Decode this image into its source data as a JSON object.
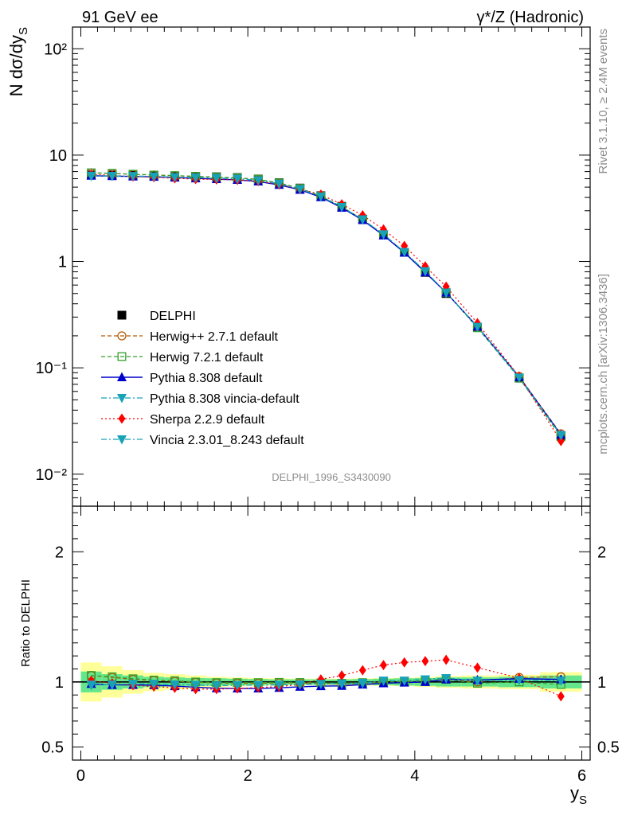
{
  "header": {
    "left": "91 GeV ee",
    "right": "γ*/Z (Hadronic)"
  },
  "side_labels": {
    "version": "Rivet 3.1.10, ≥ 2.4M events",
    "source": "mcplots.cern.ch [arXiv:1306.3436]"
  },
  "analysis_label": "DELPHI_1996_S3430090",
  "chart_data": [
    {
      "type": "scatter",
      "panel": "main",
      "ylabel": "N dσ/dy_S",
      "yscale": "log",
      "ylim": [
        0.005,
        160
      ],
      "xlim": [
        -0.1,
        6.1
      ],
      "y_ticks": [
        "10⁻²",
        "10⁻¹",
        "1",
        "10",
        "10²"
      ],
      "legend_position": "middle-left",
      "x": [
        0.125,
        0.375,
        0.625,
        0.875,
        1.125,
        1.375,
        1.625,
        1.875,
        2.125,
        2.375,
        2.625,
        2.875,
        3.125,
        3.375,
        3.625,
        3.875,
        4.125,
        4.375,
        4.75,
        5.25,
        5.75
      ],
      "series": [
        {
          "name": "DELPHI",
          "color": "#000000",
          "marker": "square-filled",
          "line": "none",
          "values": [
            6.5,
            6.5,
            6.45,
            6.4,
            6.35,
            6.3,
            6.25,
            6.15,
            5.95,
            5.5,
            4.9,
            4.15,
            3.3,
            2.5,
            1.78,
            1.22,
            0.79,
            0.5,
            0.24,
            0.08,
            0.023
          ]
        },
        {
          "name": "Herwig++ 2.7.1 default",
          "color": "#b35900",
          "marker": "circle-open",
          "line": "dashed",
          "values": [
            6.8,
            6.72,
            6.6,
            6.5,
            6.4,
            6.3,
            6.2,
            6.1,
            5.9,
            5.45,
            4.85,
            4.1,
            3.25,
            2.48,
            1.78,
            1.22,
            0.8,
            0.51,
            0.24,
            0.083,
            0.024
          ]
        },
        {
          "name": "Herwig 7.2.1 default",
          "color": "#33a02c",
          "marker": "square-open",
          "line": "dashed",
          "values": [
            6.82,
            6.75,
            6.62,
            6.5,
            6.42,
            6.32,
            6.22,
            6.12,
            5.92,
            5.48,
            4.88,
            4.12,
            3.27,
            2.49,
            1.78,
            1.22,
            0.8,
            0.51,
            0.238,
            0.08,
            0.0225
          ]
        },
        {
          "name": "Pythia 8.308 default",
          "color": "#0000cc",
          "marker": "triangle-up",
          "line": "solid",
          "values": [
            6.4,
            6.35,
            6.3,
            6.25,
            6.15,
            6.05,
            5.95,
            5.85,
            5.65,
            5.25,
            4.72,
            4.02,
            3.2,
            2.45,
            1.76,
            1.21,
            0.79,
            0.51,
            0.244,
            0.082,
            0.0235
          ]
        },
        {
          "name": "Pythia 8.308 vincia-default",
          "color": "#17a2b8",
          "marker": "triangle-down",
          "line": "dashdot",
          "values": [
            6.35,
            6.37,
            6.35,
            6.3,
            6.22,
            6.15,
            6.08,
            6.0,
            5.8,
            5.38,
            4.8,
            4.08,
            3.25,
            2.48,
            1.8,
            1.23,
            0.81,
            0.51,
            0.243,
            0.081,
            0.0232
          ]
        },
        {
          "name": "Sherpa 2.2.9 default",
          "color": "#ff0000",
          "marker": "diamond",
          "line": "dotted",
          "values": [
            6.6,
            6.45,
            6.3,
            6.2,
            6.05,
            5.95,
            5.9,
            5.85,
            5.7,
            5.3,
            4.8,
            4.25,
            3.45,
            2.72,
            2.0,
            1.4,
            0.9,
            0.58,
            0.263,
            0.083,
            0.0205
          ]
        },
        {
          "name": "Vincia 2.3.01_8.243 default",
          "color": "#17a2b8",
          "marker": "triangle-down",
          "line": "dashdot",
          "values": [
            6.4,
            6.38,
            6.36,
            6.3,
            6.22,
            6.15,
            6.08,
            6.0,
            5.8,
            5.38,
            4.8,
            4.08,
            3.26,
            2.49,
            1.8,
            1.23,
            0.81,
            0.51,
            0.243,
            0.081,
            0.0232
          ]
        }
      ]
    },
    {
      "type": "scatter",
      "panel": "ratio",
      "xlabel": "y_S",
      "ylabel": "Ratio to DELPHI",
      "ylim": [
        0.4,
        2.35
      ],
      "xlim": [
        -0.1,
        6.1
      ],
      "x_ticks": [
        "0",
        "2",
        "4",
        "6"
      ],
      "y_ticks": [
        "0.5",
        "1",
        "2"
      ],
      "reference": 1,
      "x": [
        0.125,
        0.375,
        0.625,
        0.875,
        1.125,
        1.375,
        1.625,
        1.875,
        2.125,
        2.375,
        2.625,
        2.875,
        3.125,
        3.375,
        3.625,
        3.875,
        4.125,
        4.375,
        4.75,
        5.25,
        5.75
      ],
      "band_inner": [
        0.08,
        0.06,
        0.05,
        0.04,
        0.035,
        0.03,
        0.028,
        0.025,
        0.022,
        0.02,
        0.02,
        0.02,
        0.02,
        0.022,
        0.025,
        0.028,
        0.03,
        0.035,
        0.035,
        0.04,
        0.05
      ],
      "band_outer": [
        0.15,
        0.12,
        0.09,
        0.07,
        0.06,
        0.05,
        0.04,
        0.035,
        0.03,
        0.028,
        0.025,
        0.025,
        0.025,
        0.027,
        0.03,
        0.033,
        0.038,
        0.045,
        0.05,
        0.055,
        0.075
      ],
      "series": [
        {
          "name": "Herwig++ 2.7.1 default",
          "values": [
            1.05,
            1.035,
            1.02,
            1.012,
            1.005,
            0.998,
            0.992,
            0.99,
            0.99,
            0.993,
            0.993,
            0.99,
            0.985,
            0.99,
            1.0,
            1.0,
            1.01,
            1.02,
            1.0,
            1.035,
            1.04
          ]
        },
        {
          "name": "Herwig 7.2.1 default",
          "values": [
            1.05,
            1.04,
            1.025,
            1.015,
            1.01,
            1.0,
            0.995,
            0.995,
            0.995,
            0.997,
            0.996,
            0.993,
            0.99,
            0.995,
            1.0,
            1.0,
            1.01,
            1.02,
            0.99,
            1.0,
            0.98
          ]
        },
        {
          "name": "Pythia 8.308 default",
          "values": [
            0.985,
            0.977,
            0.977,
            0.975,
            0.968,
            0.96,
            0.952,
            0.95,
            0.95,
            0.955,
            0.963,
            0.968,
            0.97,
            0.98,
            0.99,
            0.995,
            1.0,
            1.02,
            1.015,
            1.025,
            1.02
          ]
        },
        {
          "name": "Pythia 8.308 vincia-default",
          "values": [
            0.975,
            0.98,
            0.985,
            0.985,
            0.98,
            0.976,
            0.972,
            0.975,
            0.975,
            0.978,
            0.98,
            0.985,
            0.985,
            0.99,
            1.01,
            1.01,
            1.02,
            1.03,
            1.01,
            1.015,
            1.01
          ]
        },
        {
          "name": "Sherpa 2.2.9 default",
          "values": [
            1.01,
            0.99,
            0.975,
            0.965,
            0.955,
            0.945,
            0.945,
            0.95,
            0.957,
            0.964,
            0.98,
            1.02,
            1.05,
            1.09,
            1.13,
            1.15,
            1.16,
            1.17,
            1.11,
            1.03,
            0.89
          ]
        },
        {
          "name": "Vincia 2.3.01_8.243 default",
          "values": [
            0.98,
            0.98,
            0.986,
            0.985,
            0.98,
            0.976,
            0.973,
            0.975,
            0.975,
            0.978,
            0.98,
            0.985,
            0.988,
            0.993,
            1.01,
            1.01,
            1.02,
            1.03,
            1.01,
            1.015,
            1.01
          ]
        }
      ]
    }
  ]
}
